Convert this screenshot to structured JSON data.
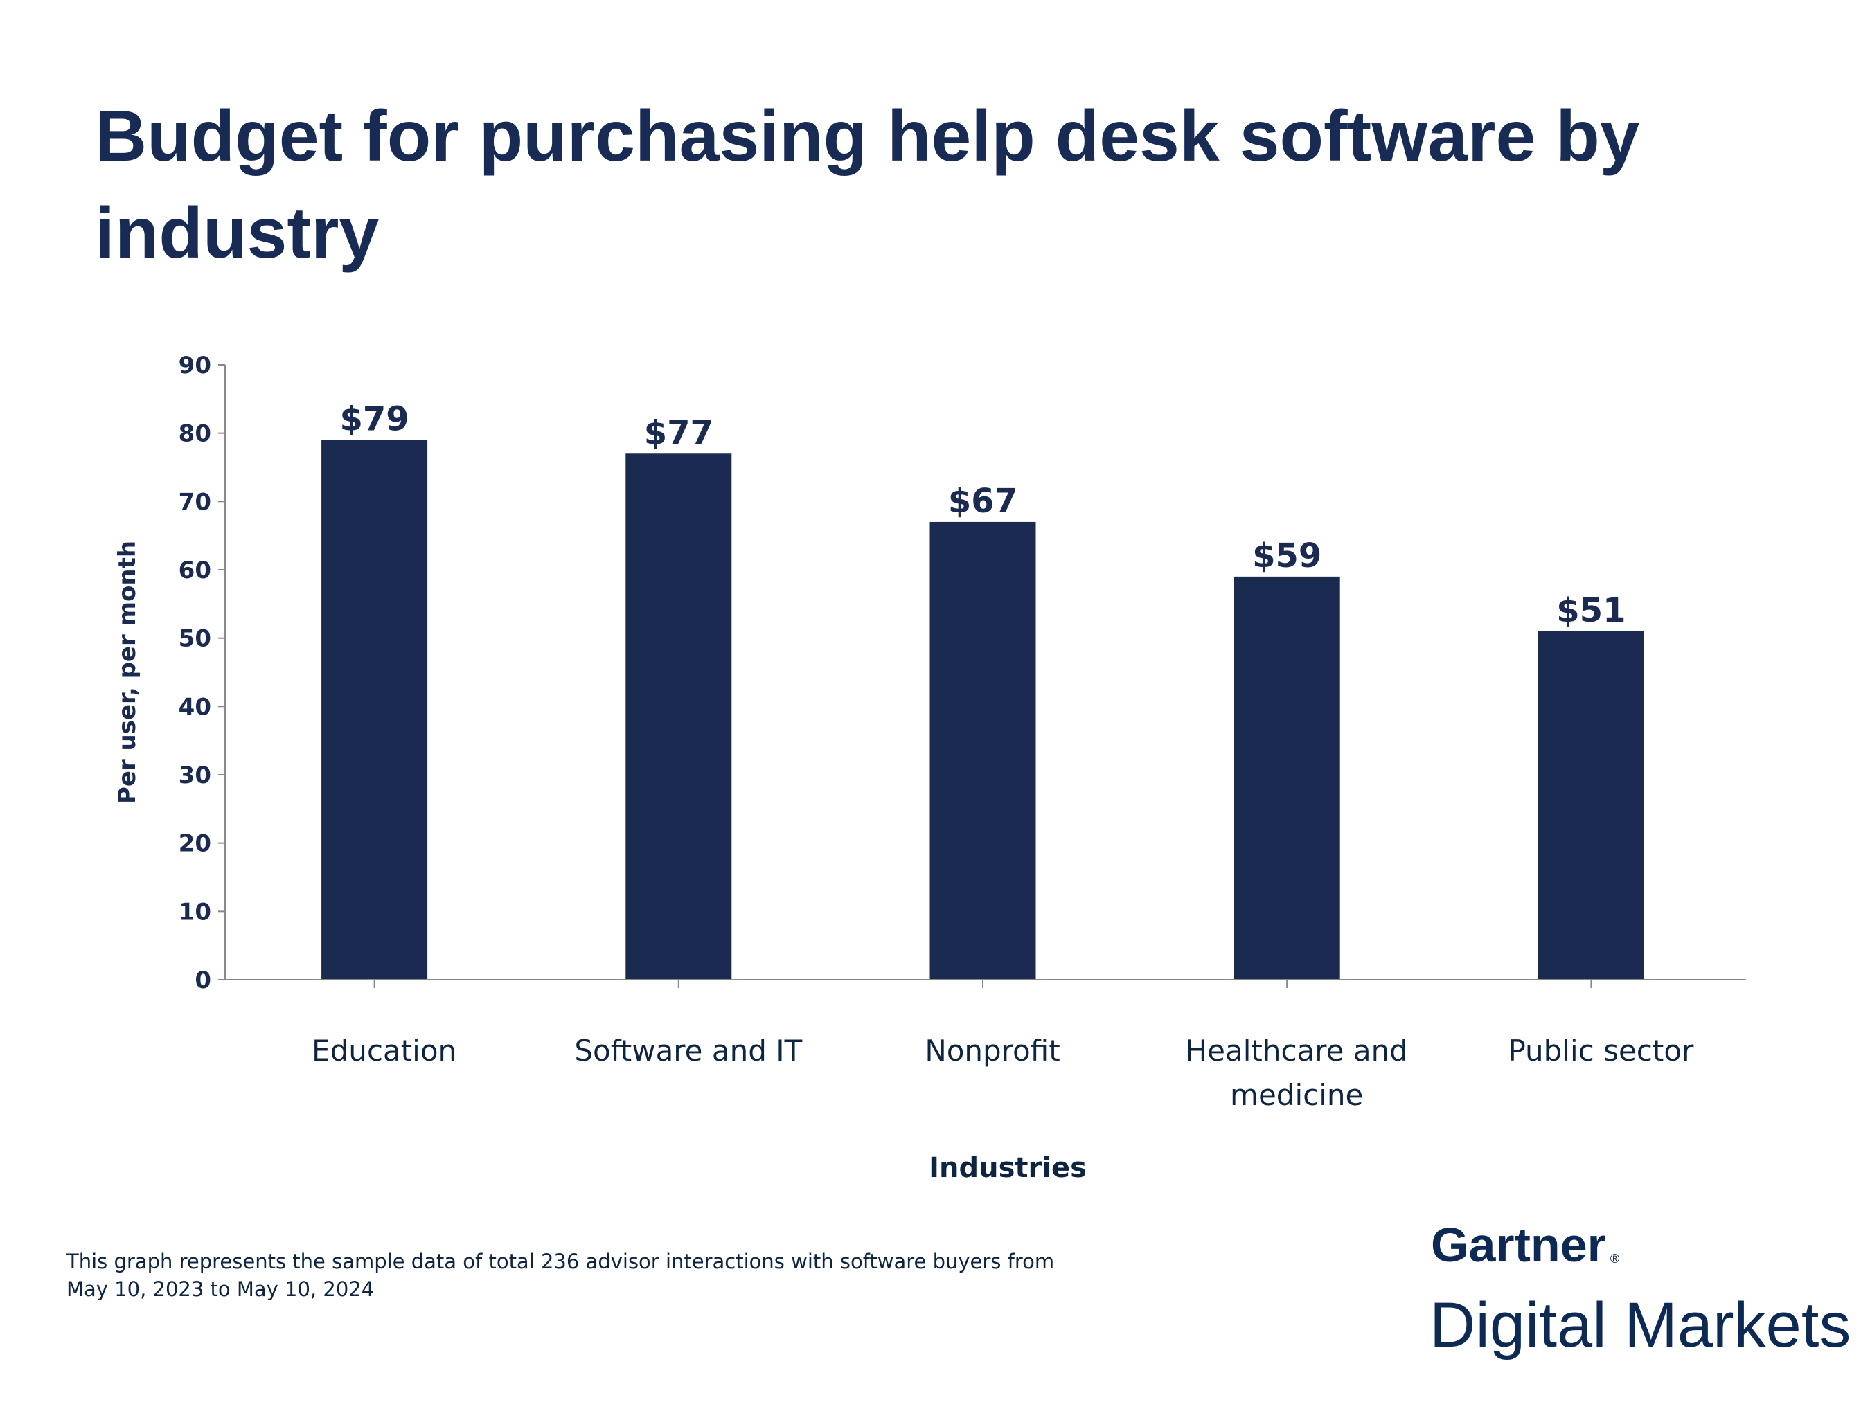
{
  "chart_data": {
    "type": "bar",
    "title_lines": [
      "Budget for purchasing help desk software by",
      "industry"
    ],
    "xlabel": "Industries",
    "ylabel": "Per user, per month",
    "categories": [
      "Education",
      "Software and IT",
      "Nonprofit",
      "Healthcare and medicine",
      "Public sector"
    ],
    "category_lines": [
      [
        "Education"
      ],
      [
        "Software and IT"
      ],
      [
        "Nonprofit"
      ],
      [
        "Healthcare and",
        "medicine"
      ],
      [
        "Public sector"
      ]
    ],
    "values": [
      79,
      77,
      67,
      59,
      51
    ],
    "data_labels": [
      "$79",
      "$77",
      "$67",
      "$59",
      "$51"
    ],
    "ylim": [
      0,
      90
    ],
    "yticks": [
      0,
      10,
      20,
      30,
      40,
      50,
      60,
      70,
      80,
      90
    ],
    "grid": false,
    "bar_color": "#1a2a50"
  },
  "footnote": {
    "line1": "This graph represents the sample data of total 236 advisor interactions with software buyers from",
    "line2": "May 10, 2023 to May 10, 2024"
  },
  "brand": {
    "name": "Gartner",
    "mark": "®",
    "sub": "Digital Markets"
  }
}
